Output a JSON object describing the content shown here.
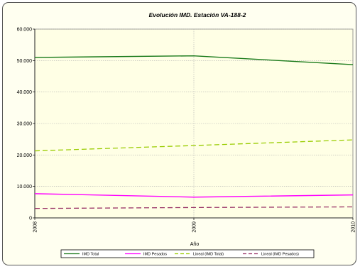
{
  "chart_data": {
    "type": "line",
    "title": "Evolución IMD. Estación VA-188-2",
    "xlabel": "Año",
    "ylabel": "",
    "categories": [
      "2008",
      "2009",
      "2010"
    ],
    "ylim": [
      0,
      60000
    ],
    "yticks": [
      "0",
      "10.000",
      "20.000",
      "30.000",
      "40.000",
      "50.000",
      "60.000"
    ],
    "yticks_values": [
      0,
      10000,
      20000,
      30000,
      40000,
      50000,
      60000
    ],
    "grid": true,
    "legend_position": "bottom",
    "series": [
      {
        "name": "IMD Total",
        "values": [
          51000,
          51500,
          48700
        ],
        "color": "#1a7a1a",
        "dash": false
      },
      {
        "name": "IMD Pesados",
        "values": [
          7700,
          6600,
          7300
        ],
        "color": "#ff00ff",
        "dash": false
      },
      {
        "name": "Lineal (IMD Total)",
        "values": [
          21300,
          23000,
          24800
        ],
        "color": "#99cc00",
        "dash": true
      },
      {
        "name": "Lineal (IMD Pesados)",
        "values": [
          3000,
          3300,
          3500
        ],
        "color": "#993366",
        "dash": true
      }
    ]
  }
}
